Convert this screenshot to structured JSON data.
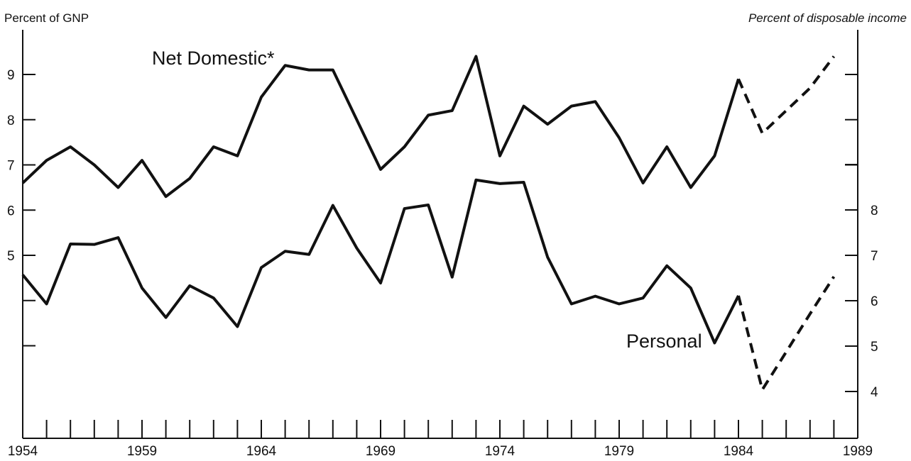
{
  "chart_data": {
    "type": "line",
    "left_axis": {
      "label": "Percent of GNP",
      "ticks": [
        5,
        6,
        7,
        8,
        9
      ],
      "range": [
        2,
        10
      ]
    },
    "right_axis": {
      "label": "Percent of disposable income",
      "ticks": [
        4,
        5,
        6,
        7,
        8
      ],
      "range": [
        3,
        9
      ]
    },
    "x_axis": {
      "tick_labels": [
        1954,
        1959,
        1964,
        1969,
        1974,
        1979,
        1984,
        1989
      ],
      "range": [
        1954,
        1989
      ]
    },
    "series": [
      {
        "name": "Net Domestic*",
        "axis": "left",
        "x": [
          1954,
          1955,
          1956,
          1957,
          1958,
          1959,
          1960,
          1961,
          1962,
          1963,
          1964,
          1965,
          1966,
          1967,
          1968,
          1969,
          1970,
          1971,
          1972,
          1973,
          1974,
          1975,
          1976,
          1977,
          1978,
          1979,
          1980,
          1981,
          1982,
          1983,
          1984,
          1985,
          1986,
          1987,
          1988
        ],
        "values": [
          6.6,
          7.1,
          7.4,
          7.0,
          6.5,
          7.1,
          6.3,
          6.7,
          7.4,
          7.2,
          8.5,
          9.2,
          9.1,
          9.1,
          8.0,
          6.9,
          7.4,
          8.1,
          8.2,
          9.4,
          7.2,
          8.3,
          7.9,
          8.3,
          8.4,
          7.6,
          6.6,
          7.4,
          6.5,
          7.2,
          8.9,
          7.7,
          8.2,
          8.7,
          9.4
        ],
        "dashed_from": 1984
      },
      {
        "name": "Personal",
        "axis": "right",
        "x": [
          1954,
          1955,
          1956,
          1957,
          1958,
          1959,
          1960,
          1961,
          1962,
          1963,
          1964,
          1965,
          1966,
          1967,
          1968,
          1969,
          1970,
          1971,
          1972,
          1973,
          1974,
          1975,
          1976,
          1977,
          1978,
          1979,
          1980,
          1981,
          1982,
          1983,
          1984,
          1985,
          1986,
          1987,
          1988
        ],
        "values": [
          6.57,
          5.93,
          7.25,
          7.24,
          7.39,
          6.28,
          5.63,
          6.33,
          6.06,
          5.43,
          6.73,
          7.09,
          7.02,
          8.1,
          7.16,
          6.39,
          8.03,
          8.11,
          6.52,
          8.66,
          8.58,
          8.61,
          6.96,
          5.93,
          6.1,
          5.93,
          6.06,
          6.77,
          6.28,
          5.07,
          6.11,
          4.04,
          4.87,
          5.71,
          6.53
        ],
        "dashed_from": 1984
      }
    ]
  }
}
